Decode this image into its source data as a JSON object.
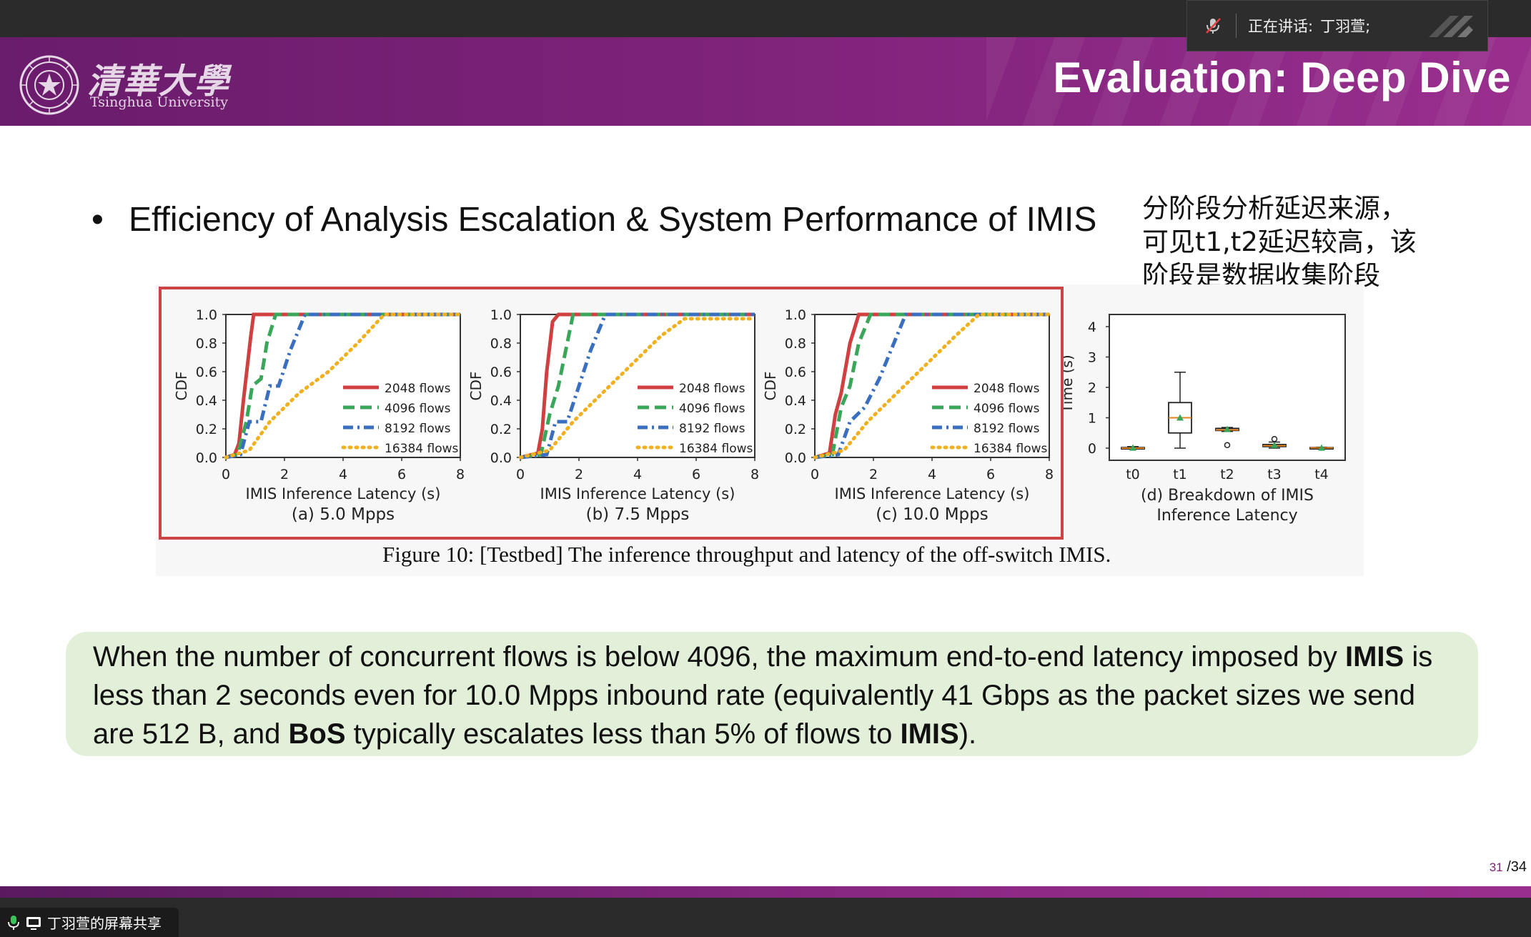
{
  "meeting": {
    "speaking_label": "正在讲话:",
    "speaker_name": "丁羽萱;",
    "share_label": "丁羽萱的屏幕共享"
  },
  "slide": {
    "university_cn": "清華大學",
    "university_en": "Tsinghua University",
    "title": "Evaluation: Deep Dive",
    "bullet": "Efficiency of Analysis Escalation & System Performance of IMIS",
    "note_lines": [
      "分阶段分析延迟来源，",
      "可见t1,t2延迟较高，该",
      "阶段是数据收集阶段"
    ],
    "figure_caption": "Figure 10:  [Testbed] The inference throughput and latency of the off-switch IMIS.",
    "summary": {
      "p1": "When the number of concurrent flows is below 4096, the maximum end-to-end latency imposed by ",
      "b1": "IMIS",
      "p2": " is less than 2 seconds even for 10.0 Mpps inbound rate (equivalently 41 Gbps as the packet sizes we send are 512 B, and ",
      "b2": "BoS",
      "p3": " typically escalates less than 5% of flows to ",
      "b3": "IMIS",
      "p4": ")."
    },
    "page_current": "31",
    "page_total": "/34",
    "colors": {
      "banner": "#7d2279",
      "highlight": "#cc4444",
      "summary_bg": "#e2efd9"
    }
  },
  "chart_data": [
    {
      "type": "line",
      "subtitle": "(a) 5.0 Mpps",
      "xlabel": "IMIS Inference Latency (s)",
      "ylabel": "CDF",
      "xlim": [
        0,
        8
      ],
      "ylim": [
        0,
        1
      ],
      "xticks": [
        "0",
        "2",
        "4",
        "6",
        "8"
      ],
      "yticks": [
        "0.0",
        "0.2",
        "0.4",
        "0.6",
        "0.8",
        "1.0"
      ],
      "legend_position": "bottom-right",
      "series": [
        {
          "name": "2048 flows",
          "color": "#d04040",
          "dash": "solid",
          "x": [
            0,
            0.3,
            0.45,
            0.6,
            0.85,
            0.95,
            1.2,
            8
          ],
          "y": [
            0,
            0.02,
            0.1,
            0.4,
            0.85,
            1.0,
            1.0,
            1.0
          ]
        },
        {
          "name": "4096 flows",
          "color": "#3aa65a",
          "dash": "dashed",
          "x": [
            0,
            0.4,
            0.7,
            0.9,
            1.2,
            1.4,
            1.7,
            2.0,
            8
          ],
          "y": [
            0,
            0.02,
            0.25,
            0.5,
            0.55,
            0.8,
            1.0,
            1.0,
            1.0
          ]
        },
        {
          "name": "8192 flows",
          "color": "#3a6fc0",
          "dash": "dashdot",
          "x": [
            0,
            0.5,
            0.8,
            1.2,
            1.5,
            1.8,
            2.2,
            2.7,
            8
          ],
          "y": [
            0,
            0.02,
            0.25,
            0.25,
            0.5,
            0.5,
            0.75,
            1.0,
            1.0
          ]
        },
        {
          "name": "16384 flows",
          "color": "#f0b020",
          "dash": "dotted",
          "x": [
            0,
            0.8,
            1.5,
            2.5,
            3.5,
            4.5,
            5.4,
            6,
            8
          ],
          "y": [
            0,
            0.05,
            0.25,
            0.45,
            0.6,
            0.8,
            1.0,
            1.0,
            1.0
          ]
        }
      ]
    },
    {
      "type": "line",
      "subtitle": "(b) 7.5 Mpps",
      "xlabel": "IMIS Inference Latency (s)",
      "ylabel": "CDF",
      "xlim": [
        0,
        8
      ],
      "ylim": [
        0,
        1
      ],
      "xticks": [
        "0",
        "2",
        "4",
        "6",
        "8"
      ],
      "yticks": [
        "0.0",
        "0.2",
        "0.4",
        "0.6",
        "0.8",
        "1.0"
      ],
      "legend_position": "bottom-right",
      "series": [
        {
          "name": "2048 flows",
          "color": "#d04040",
          "dash": "solid",
          "x": [
            0,
            0.6,
            0.75,
            0.9,
            1.1,
            1.3,
            8
          ],
          "y": [
            0,
            0.03,
            0.2,
            0.6,
            0.95,
            1.0,
            1.0
          ]
        },
        {
          "name": "4096 flows",
          "color": "#3aa65a",
          "dash": "dashed",
          "x": [
            0,
            0.7,
            1.0,
            1.3,
            1.6,
            1.8,
            8
          ],
          "y": [
            0,
            0.02,
            0.3,
            0.5,
            0.8,
            1.0,
            1.0
          ]
        },
        {
          "name": "8192 flows",
          "color": "#3a6fc0",
          "dash": "dashdot",
          "x": [
            0,
            0.9,
            1.2,
            1.6,
            2.0,
            2.4,
            2.9,
            8
          ],
          "y": [
            0,
            0.02,
            0.25,
            0.25,
            0.5,
            0.75,
            1.0,
            1.0
          ]
        },
        {
          "name": "16384 flows",
          "color": "#f0b020",
          "dash": "dotted",
          "x": [
            0,
            1.0,
            1.8,
            2.8,
            3.8,
            4.8,
            5.6,
            6,
            8
          ],
          "y": [
            0,
            0.05,
            0.25,
            0.45,
            0.65,
            0.85,
            0.97,
            0.97,
            0.97
          ]
        }
      ]
    },
    {
      "type": "line",
      "subtitle": "(c) 10.0 Mpps",
      "xlabel": "IMIS Inference Latency (s)",
      "ylabel": "CDF",
      "xlim": [
        0,
        8
      ],
      "ylim": [
        0,
        1
      ],
      "xticks": [
        "0",
        "2",
        "4",
        "6",
        "8"
      ],
      "yticks": [
        "0.0",
        "0.2",
        "0.4",
        "0.6",
        "0.8",
        "1.0"
      ],
      "legend_position": "bottom-right",
      "series": [
        {
          "name": "2048 flows",
          "color": "#d04040",
          "dash": "solid",
          "x": [
            0,
            0.5,
            0.7,
            0.9,
            1.2,
            1.5,
            8
          ],
          "y": [
            0,
            0.03,
            0.3,
            0.45,
            0.8,
            1.0,
            1.0
          ]
        },
        {
          "name": "4096 flows",
          "color": "#3aa65a",
          "dash": "dashed",
          "x": [
            0,
            0.6,
            0.9,
            1.2,
            1.5,
            1.9,
            8
          ],
          "y": [
            0,
            0.02,
            0.35,
            0.5,
            0.8,
            1.0,
            1.0
          ]
        },
        {
          "name": "8192 flows",
          "color": "#3a6fc0",
          "dash": "dashdot",
          "x": [
            0,
            0.8,
            1.2,
            1.7,
            2.2,
            2.6,
            3.1,
            8
          ],
          "y": [
            0,
            0.02,
            0.25,
            0.35,
            0.55,
            0.75,
            1.0,
            1.0
          ]
        },
        {
          "name": "16384 flows",
          "color": "#f0b020",
          "dash": "dotted",
          "x": [
            0,
            1.0,
            1.8,
            2.8,
            3.8,
            4.8,
            5.6,
            8
          ],
          "y": [
            0,
            0.05,
            0.25,
            0.45,
            0.65,
            0.85,
            1.0,
            1.0
          ]
        }
      ]
    },
    {
      "type": "box",
      "subtitle_lines": [
        "(d) Breakdown of IMIS",
        "Inference Latency"
      ],
      "ylabel": "Time (s)",
      "ylim": [
        -0.4,
        4.4
      ],
      "yticks": [
        "0",
        "1",
        "2",
        "3",
        "4"
      ],
      "categories": [
        "t0",
        "t1",
        "t2",
        "t3",
        "t4"
      ],
      "boxes": [
        {
          "min": 0,
          "q1": 0,
          "median": 0,
          "q3": 0.02,
          "max": 0.05,
          "mean": 0.01
        },
        {
          "min": 0,
          "q1": 0.5,
          "median": 1.0,
          "q3": 1.5,
          "max": 2.5,
          "mean": 1.0
        },
        {
          "min": 0.55,
          "q1": 0.58,
          "median": 0.6,
          "q3": 0.65,
          "max": 0.68,
          "mean": 0.62,
          "outliers": [
            0.1
          ]
        },
        {
          "min": 0.0,
          "q1": 0.05,
          "median": 0.08,
          "q3": 0.12,
          "max": 0.2,
          "mean": 0.1,
          "outliers": [
            0.3
          ]
        },
        {
          "min": 0,
          "q1": 0,
          "median": 0.01,
          "q3": 0.02,
          "max": 0.03,
          "mean": 0.01
        }
      ]
    }
  ]
}
